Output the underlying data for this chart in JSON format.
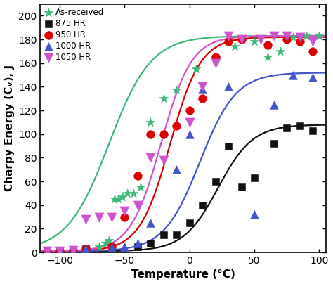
{
  "xlabel": "Temperature (°C)",
  "ylabel": "Charpy Energy (Cᵥ), J",
  "xlim": [
    -115,
    105
  ],
  "ylim": [
    0,
    210
  ],
  "xticks": [
    -100,
    -50,
    0,
    50,
    100
  ],
  "yticks": [
    0,
    20,
    40,
    60,
    80,
    100,
    120,
    140,
    160,
    180,
    200
  ],
  "series": [
    {
      "label": "As-received",
      "color": "#3cb878",
      "marker": "*",
      "markersize": 9,
      "curve_upper": 183,
      "curve_lower": 1,
      "curve_midT": -62,
      "curve_k": 0.062,
      "scatter_x": [
        -110,
        -100,
        -90,
        -80,
        -70,
        -65,
        -62,
        -58,
        -55,
        -52,
        -48,
        -43,
        -38,
        -30,
        -20,
        -10,
        5,
        20,
        35,
        50,
        60,
        70,
        80,
        90,
        100
      ],
      "scatter_y": [
        1,
        1,
        2,
        3,
        5,
        8,
        10,
        45,
        45,
        47,
        50,
        50,
        55,
        110,
        130,
        137,
        155,
        163,
        174,
        178,
        165,
        170,
        182,
        183,
        183
      ]
    },
    {
      "label": "875 HR",
      "color": "#111111",
      "marker": "s",
      "markersize": 7,
      "curve_upper": 108,
      "curve_lower": 1,
      "curve_midT": 22,
      "curve_k": 0.075,
      "scatter_x": [
        -110,
        -100,
        -90,
        -80,
        -60,
        -40,
        -30,
        -20,
        -10,
        0,
        10,
        20,
        30,
        40,
        50,
        65,
        75,
        85,
        95
      ],
      "scatter_y": [
        1,
        2,
        2,
        3,
        4,
        5,
        8,
        15,
        15,
        25,
        40,
        60,
        90,
        55,
        63,
        92,
        105,
        107,
        103
      ]
    },
    {
      "label": "950 HR",
      "color": "#dd0000",
      "marker": "o",
      "markersize": 8,
      "curve_upper": 182,
      "curve_lower": 1,
      "curve_midT": -15,
      "curve_k": 0.085,
      "scatter_x": [
        -110,
        -100,
        -90,
        -80,
        -60,
        -50,
        -40,
        -30,
        -20,
        -10,
        0,
        10,
        20,
        30,
        40,
        60,
        75,
        85,
        95
      ],
      "scatter_y": [
        1,
        1,
        2,
        3,
        5,
        30,
        65,
        100,
        100,
        107,
        120,
        130,
        165,
        178,
        180,
        175,
        180,
        178,
        170
      ]
    },
    {
      "label": "1000 HR",
      "color": "#4455cc",
      "marker": "^",
      "markersize": 8,
      "curve_upper": 152,
      "curve_lower": 1,
      "curve_midT": 8,
      "curve_k": 0.072,
      "scatter_x": [
        -110,
        -100,
        -90,
        -80,
        -60,
        -50,
        -40,
        -30,
        -10,
        0,
        10,
        30,
        50,
        65,
        80,
        95
      ],
      "scatter_y": [
        1,
        2,
        2,
        3,
        4,
        5,
        8,
        25,
        70,
        100,
        138,
        140,
        32,
        125,
        150,
        148
      ]
    },
    {
      "label": "1050 HR",
      "color": "#cc55cc",
      "marker": "v",
      "markersize": 9,
      "curve_upper": 183,
      "curve_lower": 1,
      "curve_midT": -22,
      "curve_k": 0.085,
      "scatter_x": [
        -110,
        -100,
        -90,
        -80,
        -70,
        -60,
        -50,
        -40,
        -30,
        -20,
        0,
        10,
        20,
        30,
        40,
        55,
        65,
        75,
        85,
        95
      ],
      "scatter_y": [
        1,
        1,
        2,
        28,
        30,
        30,
        35,
        40,
        80,
        78,
        110,
        140,
        160,
        183,
        180,
        180,
        183,
        183,
        182,
        178
      ]
    }
  ],
  "background_color": "#ffffff",
  "legend_fontsize": 8.5,
  "axis_fontsize": 11,
  "tick_fontsize": 10
}
